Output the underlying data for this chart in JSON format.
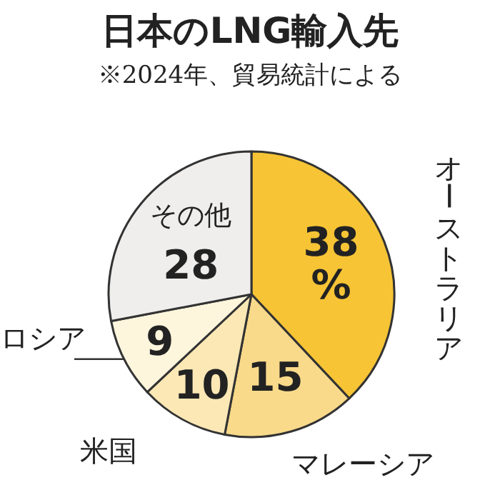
{
  "chart_data": {
    "type": "pie",
    "title": "日本のLNG輸入先",
    "subtitle": "※2024年、貿易統計による",
    "categories": [
      "オーストラリア",
      "マレーシア",
      "米国",
      "ロシア",
      "その他"
    ],
    "values": [
      38,
      15,
      10,
      9,
      28
    ],
    "value_labels": [
      "38\n%",
      "15",
      "10",
      "9",
      "28"
    ],
    "colors": [
      "#f6c435",
      "#f9da8a",
      "#fbe8b5",
      "#fdf5dc",
      "#efeeec"
    ]
  }
}
